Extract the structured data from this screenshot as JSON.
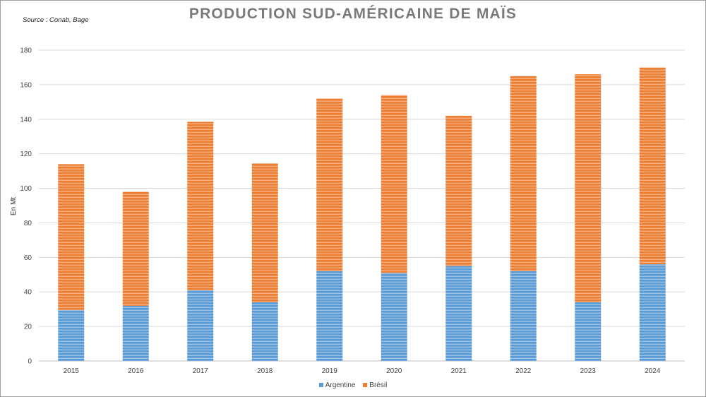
{
  "source": "Source : Conab, Bage",
  "chart_data": {
    "type": "bar",
    "stacked": true,
    "title": "PRODUCTION SUD-AMÉRICAINE DE MAÏS",
    "xlabel": "",
    "ylabel": "En Mt",
    "ylim": [
      0,
      180
    ],
    "yticks": [
      0,
      20,
      40,
      60,
      80,
      100,
      120,
      140,
      160,
      180
    ],
    "grid": true,
    "legend_position": "bottom",
    "categories": [
      "2015",
      "2016",
      "2017",
      "2018",
      "2019",
      "2020",
      "2021",
      "2022",
      "2023",
      "2024"
    ],
    "series": [
      {
        "name": "Argentine",
        "color": "#5b9bd5",
        "values": [
          29.5,
          32,
          41,
          34,
          52,
          51,
          55,
          52,
          34,
          56
        ]
      },
      {
        "name": "Brésil",
        "color": "#ed7d31",
        "values": [
          84.5,
          66,
          97.5,
          80.5,
          100,
          103,
          87,
          113,
          132,
          114
        ]
      }
    ]
  }
}
